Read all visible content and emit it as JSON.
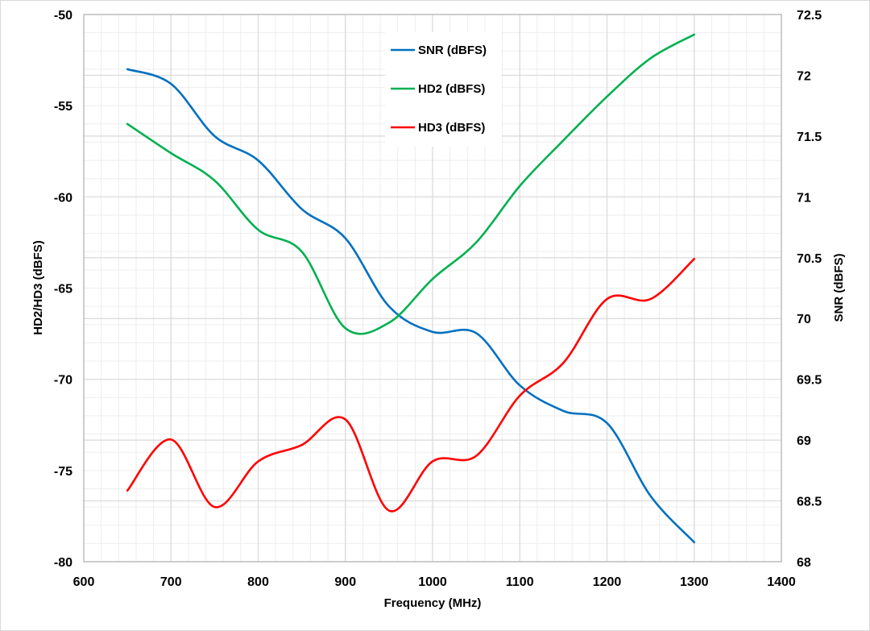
{
  "chart_data": {
    "type": "line",
    "title": "",
    "xlabel": "Frequency (MHz)",
    "ylabel": "HD2/HD3 (dBFS)",
    "y2label": "SNR (dBFS)",
    "xlim": [
      600,
      1400
    ],
    "ylim": [
      -80,
      -50
    ],
    "y2lim": [
      68,
      72.5
    ],
    "grid": true,
    "legend_position": "top-center (inside plot)",
    "x_ticks": [
      "600",
      "700",
      "800",
      "900",
      "1000",
      "1100",
      "1200",
      "1300",
      "1400"
    ],
    "y_ticks": [
      "-50",
      "-55",
      "-60",
      "-65",
      "-70",
      "-75",
      "-80"
    ],
    "y2_ticks": [
      "72.5",
      "72",
      "71.5",
      "71",
      "70.5",
      "70",
      "69.5",
      "69",
      "68.5",
      "68"
    ],
    "x": [
      650,
      700,
      750,
      800,
      850,
      900,
      950,
      1000,
      1050,
      1100,
      1150,
      1200,
      1250,
      1300
    ],
    "series": [
      {
        "name": "SNR (dBFS)",
        "axis": "right",
        "color": "#0070C0",
        "values": [
          72.05,
          71.93,
          71.5,
          71.3,
          70.9,
          70.66,
          70.1,
          69.89,
          69.88,
          69.45,
          69.24,
          69.14,
          68.54,
          68.16
        ]
      },
      {
        "name": "HD2 (dBFS)",
        "axis": "left",
        "color": "#00B050",
        "values": [
          -56.0,
          -57.6,
          -59.1,
          -61.8,
          -63.0,
          -67.2,
          -66.9,
          -64.5,
          -62.5,
          -59.4,
          -56.9,
          -54.5,
          -52.4,
          -51.1
        ]
      },
      {
        "name": "HD3 (dBFS)",
        "axis": "left",
        "color": "#FF0000",
        "values": [
          -76.1,
          -73.3,
          -77.0,
          -74.5,
          -73.6,
          -72.2,
          -77.2,
          -74.5,
          -74.2,
          -70.9,
          -69.1,
          -65.6,
          -65.6,
          -63.4
        ]
      }
    ]
  }
}
